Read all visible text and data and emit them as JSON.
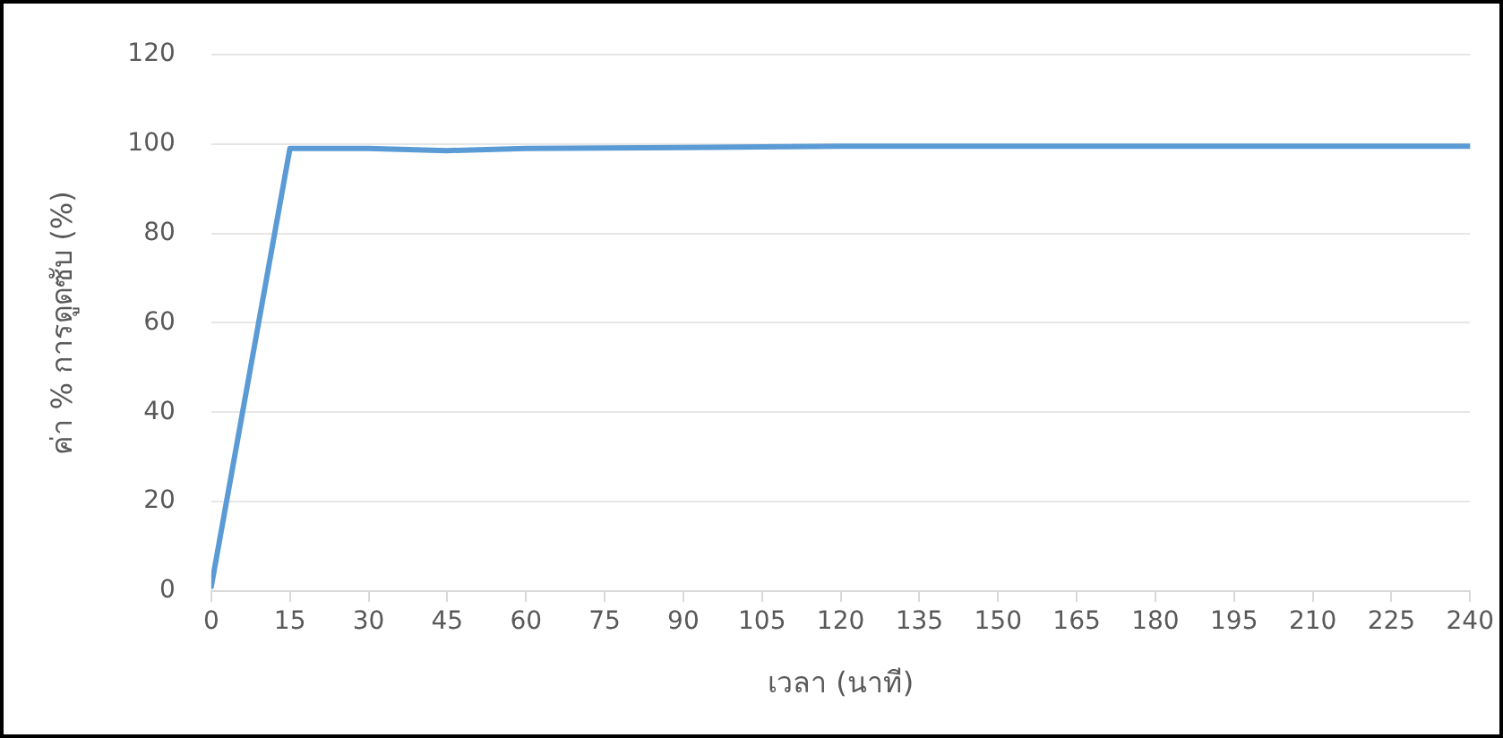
{
  "chart_data": {
    "type": "line",
    "xlabel": "เวลา (นาที)",
    "ylabel": "ค่า % การดูดซับ (%)",
    "x": [
      0,
      15,
      30,
      45,
      60,
      90,
      120,
      180,
      240
    ],
    "series": [
      {
        "color": "#5b9bd5",
        "values": [
          1,
          99,
          99,
          98.5,
          99,
          99.2,
          99.5,
          99.5,
          99.5
        ]
      }
    ],
    "xlim": [
      0,
      240
    ],
    "xticks": [
      0,
      15,
      30,
      45,
      60,
      75,
      90,
      105,
      120,
      135,
      150,
      165,
      180,
      195,
      210,
      225,
      240
    ],
    "ylim": [
      0,
      120
    ],
    "yticks": [
      0,
      20,
      40,
      60,
      80,
      100,
      120
    ],
    "grid": "y",
    "marker": "none",
    "line_style": "solid",
    "legend": false
  }
}
